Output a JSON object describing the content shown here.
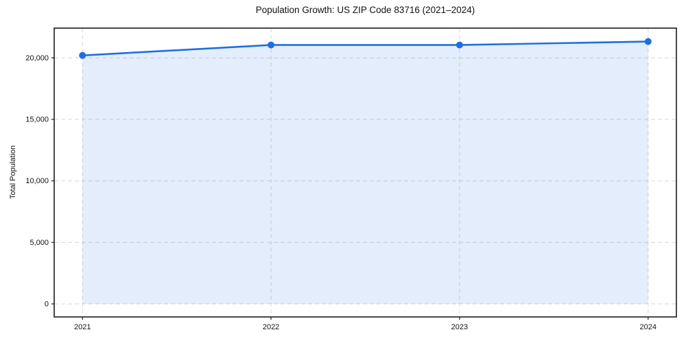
{
  "page": {
    "background": "#ffffff"
  },
  "chart_data": {
    "type": "area",
    "title": "Population Growth: US ZIP Code 83716 (2021–2024)",
    "xlabel": "",
    "ylabel": "Total Population",
    "series_name": "Total Population",
    "x": [
      2021,
      2022,
      2023,
      2024
    ],
    "categories": [
      "2021",
      "2022",
      "2023",
      "2024"
    ],
    "values": [
      20200,
      21050,
      21050,
      21330
    ],
    "xlim": [
      2020.85,
      2024.15
    ],
    "ylim": [
      -1060,
      22420
    ],
    "grid": true,
    "grid_style": "dashed",
    "legend": "none",
    "xticks": {
      "values": [
        2021,
        2022,
        2023,
        2024
      ],
      "labels": [
        "2021",
        "2022",
        "2023",
        "2024"
      ]
    },
    "yticks": {
      "values": [
        0,
        5000,
        10000,
        15000,
        20000
      ],
      "labels": [
        "0",
        "5,000",
        "10,000",
        "15,000",
        "20,000"
      ]
    },
    "style": {
      "line_color": "#1e6fe0",
      "marker_color": "#1e6fe0",
      "fill_color": "rgba(30,111,224,0.12)",
      "grid_color": "#d7d7d7",
      "axis_color": "#1a1a1a",
      "text_color": "#111111"
    }
  }
}
